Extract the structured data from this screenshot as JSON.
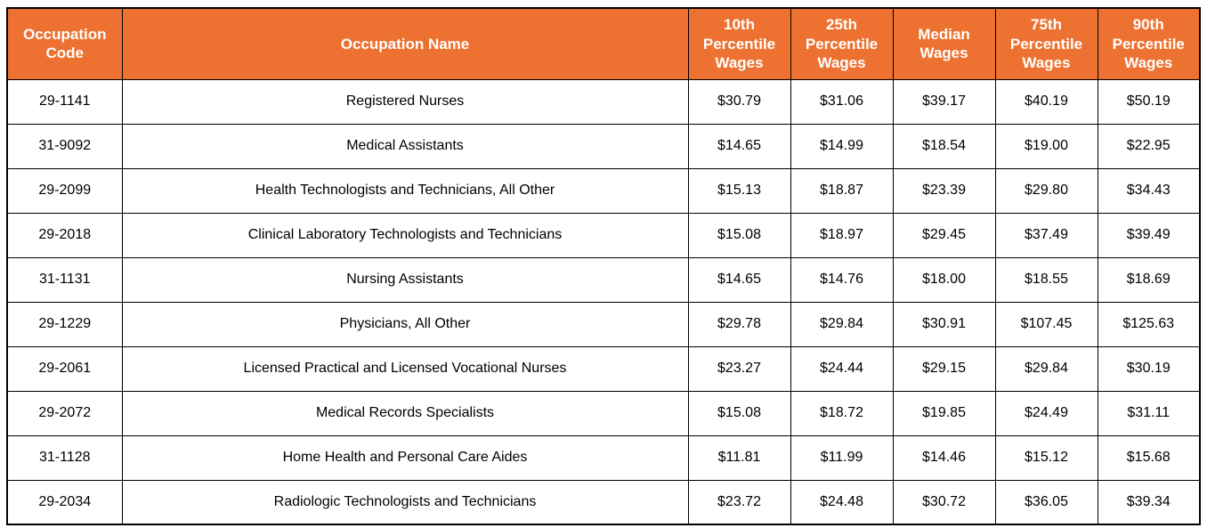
{
  "chart_data": {
    "type": "table",
    "columns": [
      "Occupation Code",
      "Occupation Name",
      "10th Percentile Wages",
      "25th Percentile Wages",
      "Median Wages",
      "75th Percentile Wages",
      "90th Percentile Wages"
    ],
    "rows": [
      {
        "code": "29-1141",
        "name": "Registered Nurses",
        "wages": [
          "$30.79",
          "$31.06",
          "$39.17",
          "$40.19",
          "$50.19"
        ]
      },
      {
        "code": "31-9092",
        "name": "Medical Assistants",
        "wages": [
          "$14.65",
          "$14.99",
          "$18.54",
          "$19.00",
          "$22.95"
        ]
      },
      {
        "code": "29-2099",
        "name": "Health Technologists and Technicians, All Other",
        "wages": [
          "$15.13",
          "$18.87",
          "$23.39",
          "$29.80",
          "$34.43"
        ]
      },
      {
        "code": "29-2018",
        "name": "Clinical Laboratory Technologists and Technicians",
        "wages": [
          "$15.08",
          "$18.97",
          "$29.45",
          "$37.49",
          "$39.49"
        ]
      },
      {
        "code": "31-1131",
        "name": "Nursing Assistants",
        "wages": [
          "$14.65",
          "$14.76",
          "$18.00",
          "$18.55",
          "$18.69"
        ]
      },
      {
        "code": "29-1229",
        "name": "Physicians, All Other",
        "wages": [
          "$29.78",
          "$29.84",
          "$30.91",
          "$107.45",
          "$125.63"
        ]
      },
      {
        "code": "29-2061",
        "name": "Licensed Practical and Licensed Vocational Nurses",
        "wages": [
          "$23.27",
          "$24.44",
          "$29.15",
          "$29.84",
          "$30.19"
        ]
      },
      {
        "code": "29-2072",
        "name": "Medical Records Specialists",
        "wages": [
          "$15.08",
          "$18.72",
          "$19.85",
          "$24.49",
          "$31.11"
        ]
      },
      {
        "code": "31-1128",
        "name": "Home Health and Personal Care Aides",
        "wages": [
          "$11.81",
          "$11.99",
          "$14.46",
          "$15.12",
          "$15.68"
        ]
      },
      {
        "code": "29-2034",
        "name": "Radiologic Technologists and Technicians",
        "wages": [
          "$23.72",
          "$24.48",
          "$30.72",
          "$36.05",
          "$39.34"
        ]
      }
    ]
  },
  "colors": {
    "header_bg": "#ED7231",
    "header_text": "#FFFFFF",
    "body_text": "#000000",
    "border": "#000000",
    "page_bg": "#FFFFFF"
  }
}
